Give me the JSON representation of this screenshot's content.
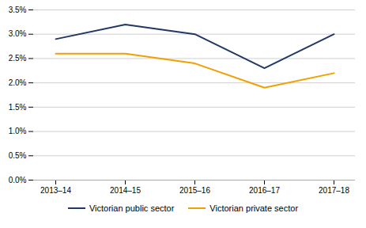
{
  "chart_data": {
    "type": "line",
    "categories": [
      "2013–14",
      "2014–15",
      "2015–16",
      "2016–17",
      "2017–18"
    ],
    "series": [
      {
        "name": "Victorian public sector",
        "color": "#1F3864",
        "values": [
          0.029,
          0.032,
          0.03,
          0.023,
          0.03
        ]
      },
      {
        "name": "Victorian private sector",
        "color": "#F0A000",
        "values": [
          0.026,
          0.026,
          0.024,
          0.019,
          0.022
        ]
      }
    ],
    "ylim": [
      0.0,
      0.035
    ],
    "yticks": [
      {
        "value": 0.0,
        "label": "0.0%"
      },
      {
        "value": 0.005,
        "label": "0.5%"
      },
      {
        "value": 0.01,
        "label": "1.0%"
      },
      {
        "value": 0.015,
        "label": "1.5%"
      },
      {
        "value": 0.02,
        "label": "2.0%"
      },
      {
        "value": 0.025,
        "label": "2.5%"
      },
      {
        "value": 0.03,
        "label": "3.0%"
      },
      {
        "value": 0.035,
        "label": "3.5%"
      }
    ],
    "grid": true,
    "legend": "bottom"
  }
}
